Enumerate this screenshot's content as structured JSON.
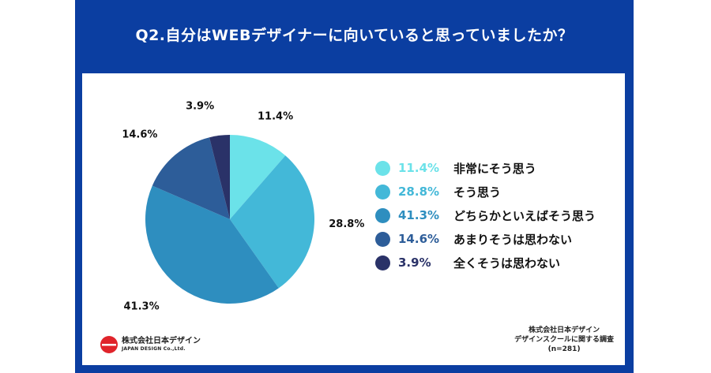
{
  "header": {
    "title": "Q2.自分はWEBデザイナーに向いていると思っていましたか？"
  },
  "chart_data": {
    "type": "pie",
    "slices": [
      {
        "label": "非常にそう思う",
        "value": 11.4,
        "display": "11.4%",
        "color": "#6be2e9"
      },
      {
        "label": "そう思う",
        "value": 28.8,
        "display": "28.8%",
        "color": "#43b8d8"
      },
      {
        "label": "どちらかといえばそう思う",
        "value": 41.3,
        "display": "41.3%",
        "color": "#2e8ebf"
      },
      {
        "label": "あまりそうは思わない",
        "value": 14.6,
        "display": "14.6%",
        "color": "#2d5d99"
      },
      {
        "label": "全くそうは思わない",
        "value": 3.9,
        "display": "3.9%",
        "color": "#2a3268"
      }
    ],
    "start": "12 o'clock",
    "direction": "clockwise",
    "legend_position": "right"
  },
  "logo": {
    "line1": "株式会社日本デザイン",
    "line2": "JAPAN DESIGN Co.,Ltd."
  },
  "source": {
    "line1": "株式会社日本デザイン",
    "line2": "デザインスクールに関する調査",
    "line3": "(n=281)"
  },
  "colors": {
    "frame": "#0b3ea1",
    "logo_red": "#e0242b"
  }
}
